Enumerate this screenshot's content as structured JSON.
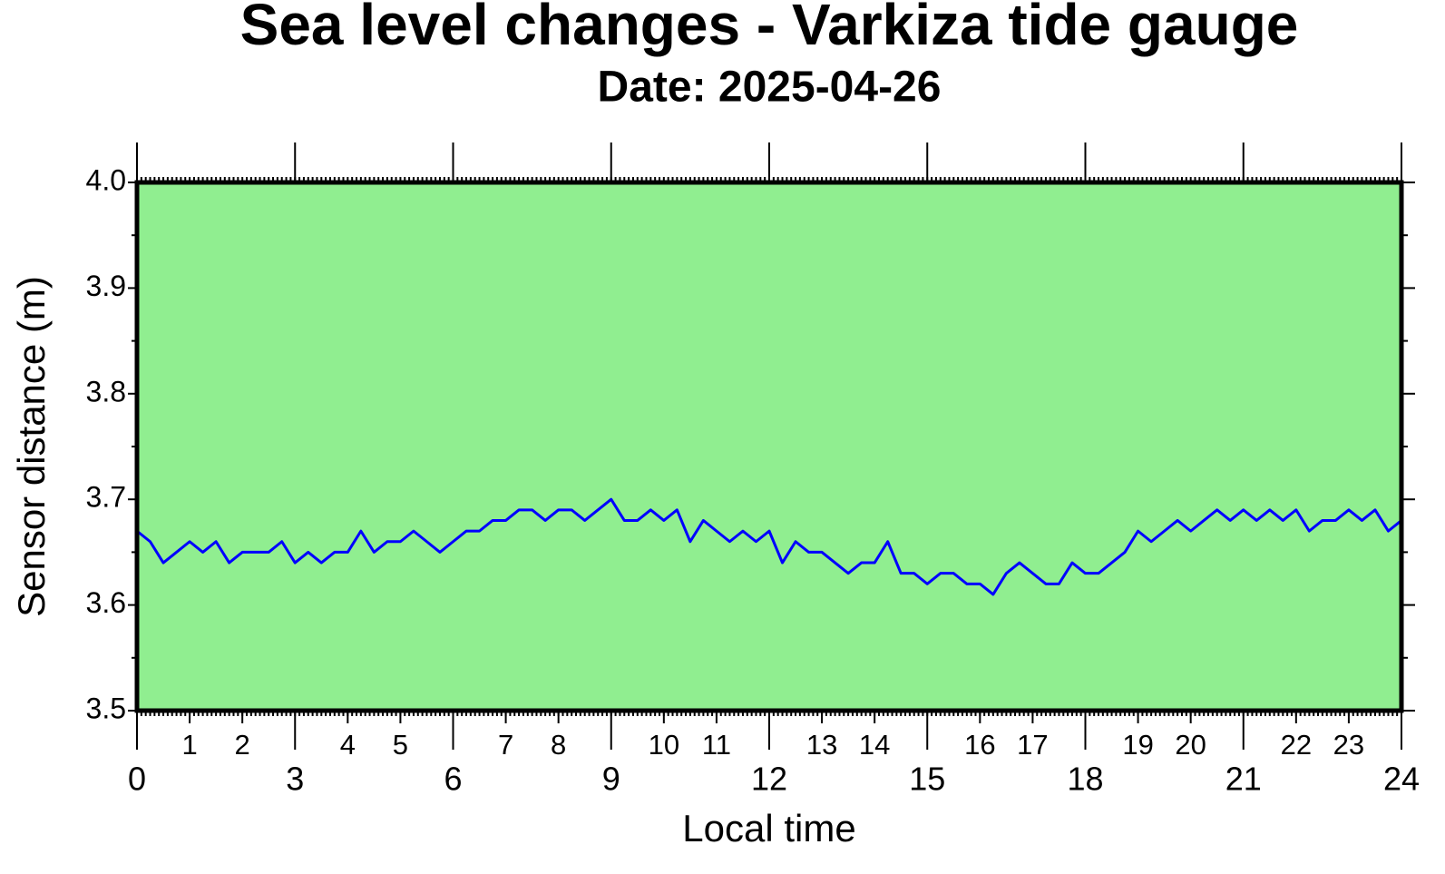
{
  "chart_data": {
    "type": "line",
    "title": "Sea level changes - Varkiza tide gauge",
    "subtitle": "Date: 2025-04-26",
    "xlabel": "Local time",
    "ylabel": "Sensor distance (m)",
    "xlim": [
      0,
      24
    ],
    "ylim": [
      3.5,
      4
    ],
    "xticks": [
      0,
      3,
      6,
      9,
      12,
      15,
      18,
      21,
      24
    ],
    "xticks_hours": [
      1,
      2,
      4,
      5,
      7,
      8,
      10,
      11,
      13,
      14,
      16,
      17,
      19,
      20,
      22,
      23
    ],
    "yticks": [
      3.5,
      3.6,
      3.7,
      3.8,
      3.9,
      {
        "value": 4,
        "label": "4.0"
      }
    ],
    "background": "#90ee90",
    "x": [
      0,
      0.25,
      0.5,
      0.75,
      1,
      1.25,
      1.5,
      1.75,
      2,
      2.25,
      2.5,
      2.75,
      3,
      3.25,
      3.5,
      3.75,
      4,
      4.25,
      4.5,
      4.75,
      5,
      5.25,
      5.5,
      5.75,
      6,
      6.25,
      6.5,
      6.75,
      7,
      7.25,
      7.5,
      7.75,
      8,
      8.25,
      8.5,
      8.75,
      9,
      9.25,
      9.5,
      9.75,
      10,
      10.25,
      10.5,
      10.75,
      11,
      11.25,
      11.5,
      11.75,
      12,
      12.25,
      12.5,
      12.75,
      13,
      13.25,
      13.5,
      13.75,
      14,
      14.25,
      14.5,
      14.75,
      15,
      15.25,
      15.5,
      15.75,
      16,
      16.25,
      16.5,
      16.75,
      17,
      17.25,
      17.5,
      17.75,
      18,
      18.25,
      18.5,
      18.75,
      19,
      19.25,
      19.5,
      19.75,
      20,
      20.25,
      20.5,
      20.75,
      21,
      21.25,
      21.5,
      21.75,
      22,
      22.25,
      22.5,
      22.75,
      23,
      23.25,
      23.5,
      23.75,
      24
    ],
    "series": [
      {
        "color": "#0000ff",
        "values": [
          3.67,
          3.66,
          3.64,
          3.65,
          3.66,
          3.65,
          3.66,
          3.64,
          3.65,
          3.65,
          3.65,
          3.66,
          3.64,
          3.65,
          3.64,
          3.65,
          3.65,
          3.67,
          3.65,
          3.66,
          3.66,
          3.67,
          3.66,
          3.65,
          3.66,
          3.67,
          3.67,
          3.68,
          3.68,
          3.69,
          3.69,
          3.68,
          3.69,
          3.69,
          3.68,
          3.69,
          3.7,
          3.68,
          3.68,
          3.69,
          3.68,
          3.69,
          3.66,
          3.68,
          3.67,
          3.66,
          3.67,
          3.66,
          3.67,
          3.64,
          3.66,
          3.65,
          3.65,
          3.64,
          3.63,
          3.64,
          3.64,
          3.66,
          3.63,
          3.63,
          3.62,
          3.63,
          3.63,
          3.62,
          3.62,
          3.61,
          3.63,
          3.64,
          3.63,
          3.62,
          3.62,
          3.64,
          3.63,
          3.63,
          3.64,
          3.65,
          3.67,
          3.66,
          3.67,
          3.68,
          3.67,
          3.68,
          3.69,
          3.68,
          3.69,
          3.68,
          3.69,
          3.68,
          3.69,
          3.67,
          3.68,
          3.68,
          3.69,
          3.68,
          3.69,
          3.67,
          3.68
        ]
      }
    ]
  }
}
